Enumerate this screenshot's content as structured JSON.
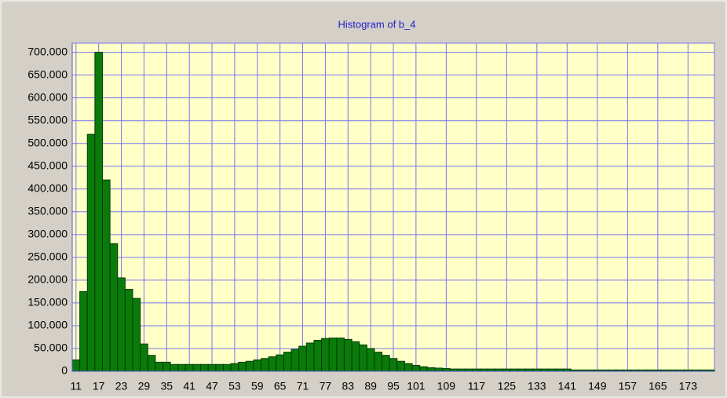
{
  "chart_data": {
    "type": "histogram",
    "title": "Histogram of b_4",
    "bins": [
      10,
      12,
      14,
      16,
      18,
      20,
      22,
      24,
      26,
      28,
      30,
      32,
      34,
      36,
      38,
      40,
      42,
      44,
      46,
      48,
      50,
      52,
      54,
      56,
      58,
      60,
      62,
      64,
      66,
      68,
      70,
      72,
      74,
      76,
      78,
      80,
      82,
      84,
      86,
      88,
      90,
      92,
      94,
      96,
      98,
      100,
      102,
      104,
      106,
      108,
      110,
      112,
      114,
      116,
      118,
      120,
      122,
      124,
      126,
      128,
      130,
      132,
      134,
      136,
      138,
      140,
      142,
      144,
      146,
      148,
      150,
      152,
      154,
      156,
      158,
      160,
      162,
      164,
      166,
      168,
      170,
      172,
      174,
      176,
      178,
      180
    ],
    "values": [
      25000,
      175000,
      520000,
      700000,
      420000,
      280000,
      205000,
      180000,
      160000,
      60000,
      35000,
      20000,
      20000,
      15000,
      15000,
      15000,
      15000,
      15000,
      15000,
      15000,
      15000,
      17000,
      20000,
      22000,
      25000,
      28000,
      32000,
      36000,
      42000,
      48000,
      55000,
      62000,
      68000,
      72000,
      73000,
      73000,
      70000,
      65000,
      58000,
      50000,
      42000,
      35000,
      28000,
      22000,
      17000,
      13000,
      10000,
      8000,
      7000,
      6000,
      5000,
      5000,
      5000,
      5000,
      5000,
      5000,
      5000,
      5000,
      5000,
      5000,
      5000,
      5000,
      5000,
      5000,
      5000,
      5000,
      3000,
      3000,
      3000,
      3000,
      3000,
      3000,
      3000,
      3000,
      3000,
      3000,
      3000,
      3000,
      3000,
      3000,
      3000,
      3000,
      3000,
      3000,
      3000
    ],
    "color": "#0a7a0a",
    "xlim": [
      10,
      180
    ],
    "xticks": [
      11,
      17,
      23,
      29,
      35,
      41,
      47,
      53,
      59,
      65,
      71,
      77,
      83,
      89,
      95,
      101,
      109,
      117,
      125,
      133,
      141,
      149,
      157,
      165,
      173
    ],
    "ylim": [
      0,
      720000
    ],
    "yticks": [
      0,
      {
        "value": 50000,
        "label": "50.000"
      },
      {
        "value": 100000,
        "label": "100.000"
      },
      {
        "value": 150000,
        "label": "150.000"
      },
      {
        "value": 200000,
        "label": "200.000"
      },
      {
        "value": 250000,
        "label": "250.000"
      },
      {
        "value": 300000,
        "label": "300.000"
      },
      {
        "value": 350000,
        "label": "350.000"
      },
      {
        "value": 400000,
        "label": "400.000"
      },
      {
        "value": 450000,
        "label": "450.000"
      },
      {
        "value": 500000,
        "label": "500.000"
      },
      {
        "value": 550000,
        "label": "550.000"
      },
      {
        "value": 600000,
        "label": "600.000"
      },
      {
        "value": 650000,
        "label": "650.000"
      },
      {
        "value": 700000,
        "label": "700.000"
      }
    ],
    "grid": true
  }
}
